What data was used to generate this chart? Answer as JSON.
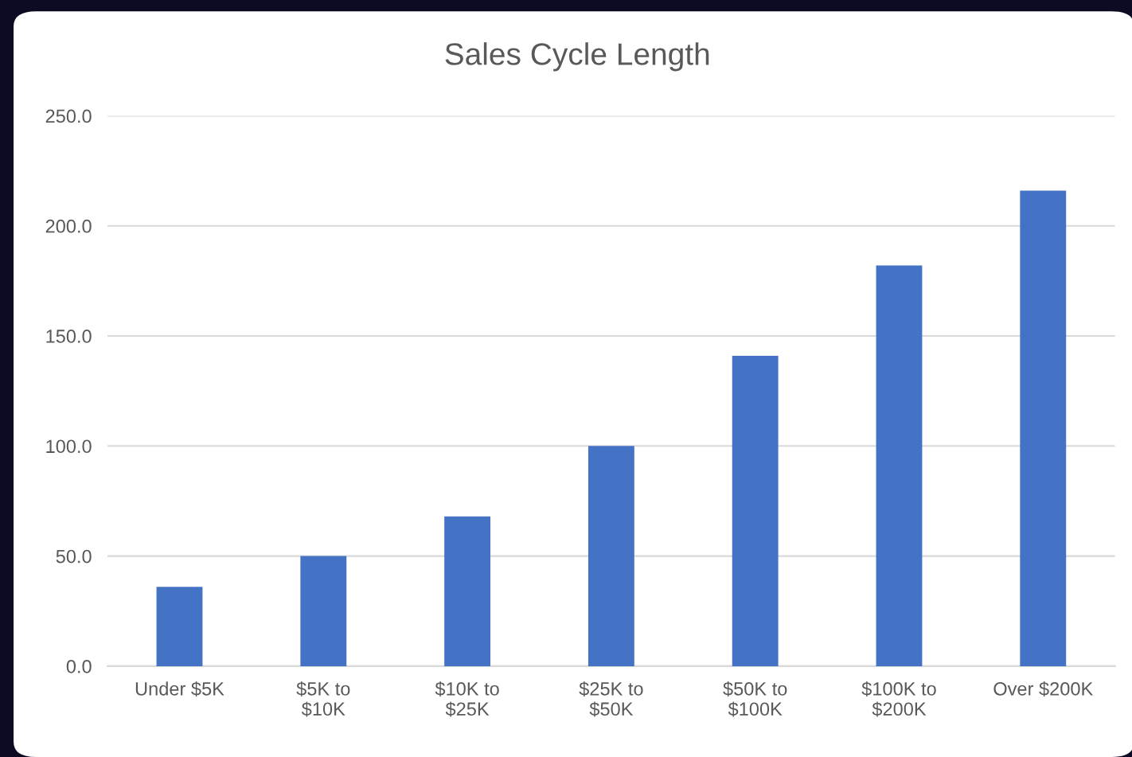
{
  "chart_data": {
    "type": "bar",
    "title": "Sales Cycle Length",
    "categories": [
      "Under $5K",
      "$5K to\n$10K",
      "$10K to\n$25K",
      "$25K to\n$50K",
      "$50K to\n$100K",
      "$100K to\n$200K",
      "Over $200K"
    ],
    "values": [
      36,
      50,
      68,
      100,
      141,
      182,
      216
    ],
    "color": "#4472c4",
    "ylim": [
      0,
      250
    ],
    "yticks": [
      {
        "value": 0,
        "label": "0.0"
      },
      {
        "value": 50,
        "label": "50.0"
      },
      {
        "value": 100,
        "label": "100.0"
      },
      {
        "value": 150,
        "label": "150.0"
      },
      {
        "value": 200,
        "label": "200.0"
      },
      {
        "value": 250,
        "label": "250.0"
      }
    ],
    "grid": "y"
  }
}
